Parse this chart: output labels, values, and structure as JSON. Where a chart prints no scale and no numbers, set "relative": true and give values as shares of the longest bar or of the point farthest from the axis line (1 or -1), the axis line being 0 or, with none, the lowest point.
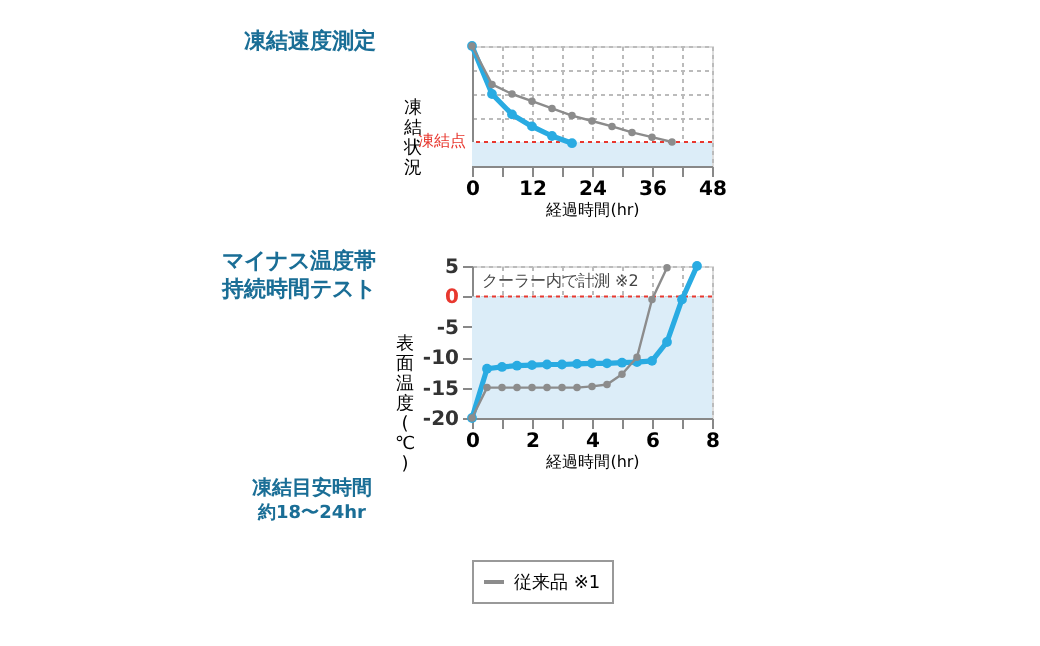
{
  "chart_data": [
    {
      "type": "line",
      "title": "凍結速度測定",
      "xlabel": "経過時間(hr)",
      "ylabel": "凍結状況",
      "relative": true,
      "marker": "circle",
      "grid": true,
      "xlim": [
        0,
        48
      ],
      "xticks": [
        0,
        {
          "value": 6,
          "label": null
        },
        12,
        {
          "value": 18,
          "label": null
        },
        24,
        {
          "value": 30,
          "label": null
        },
        36,
        {
          "value": 42,
          "label": null
        },
        48
      ],
      "series": [
        {
          "color": "#29abe2",
          "x": [
            0,
            4,
            8,
            12,
            16,
            20
          ],
          "values": [
            1.0,
            0.6,
            0.43,
            0.33,
            0.25,
            0.19
          ]
        },
        {
          "color": "#8c8c8c",
          "x": [
            0,
            4,
            8,
            12,
            16,
            20,
            24,
            28,
            32,
            36,
            40
          ],
          "values": [
            1.0,
            0.68,
            0.6,
            0.54,
            0.48,
            0.42,
            0.375,
            0.33,
            0.28,
            0.24,
            0.2
          ]
        }
      ],
      "ref_lines": [
        {
          "axis": "y",
          "value": 0.2,
          "label": "凍結点",
          "color": "#e8382f",
          "line_style": "dotted"
        }
      ],
      "bands": [
        {
          "axis": "y",
          "from": 0,
          "to": 0.2,
          "label": null,
          "color": "#dcedf8"
        }
      ]
    },
    {
      "type": "line",
      "title": "マイナス温度帯持続時間テスト",
      "xlabel": "経過時間(hr)",
      "ylabel": "表面温度(℃)",
      "marker": "circle",
      "grid": true,
      "legend": "bottom",
      "xlim": [
        0,
        8
      ],
      "xticks": [
        0,
        {
          "value": 1,
          "label": null
        },
        2,
        {
          "value": 3,
          "label": null
        },
        4,
        {
          "value": 5,
          "label": null
        },
        6,
        {
          "value": 7,
          "label": null
        },
        8
      ],
      "ylim": [
        -20,
        5
      ],
      "yticks": [
        -20,
        -15,
        -10,
        -5,
        0,
        5
      ],
      "series": [
        {
          "color": "#29abe2",
          "x": [
            0,
            0.5,
            1,
            1.5,
            2,
            2.5,
            3,
            3.5,
            4,
            4.5,
            5,
            5.5,
            6,
            6.5,
            7,
            7.5
          ],
          "values": [
            -20,
            -11.9,
            -11.6,
            -11.4,
            -11.3,
            -11.2,
            -11.2,
            -11.1,
            -11,
            -11,
            -10.9,
            -10.8,
            -10.6,
            -7.5,
            -0.5,
            5
          ]
        },
        {
          "name": "従来品 ※1",
          "color": "#8c8c8c",
          "x": [
            0,
            0.5,
            1,
            1.5,
            2,
            2.5,
            3,
            3.5,
            4,
            4.5,
            5,
            5.5,
            6,
            6.5
          ],
          "values": [
            -20,
            -15,
            -15,
            -15,
            -15,
            -15,
            -15,
            -15,
            -14.8,
            -14.5,
            -12.8,
            -10,
            -0.5,
            4.7
          ]
        }
      ],
      "ref_lines": [
        {
          "axis": "y",
          "value": 0,
          "label": null,
          "color": "#e8382f",
          "line_style": "dotted"
        }
      ],
      "bands": [
        {
          "axis": "y",
          "from": -20,
          "to": 0,
          "label": null,
          "color": "#dcedf8"
        }
      ],
      "annotations": [
        "クーラー内で計測 ※2",
        "凍結目安時間",
        "約18〜24hr"
      ]
    }
  ]
}
